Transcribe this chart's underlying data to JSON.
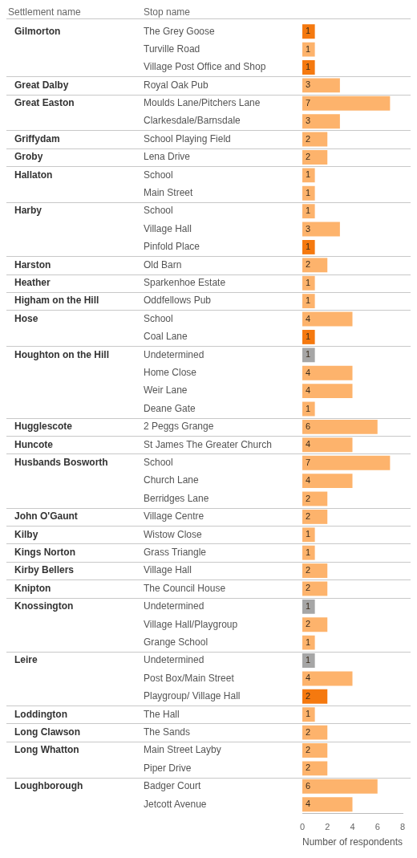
{
  "chart_data": {
    "type": "bar",
    "orientation": "horizontal",
    "xlabel": "Number of respondents",
    "categories": [
      "The Grey Goose",
      "Turville Road",
      "Village Post Office and Shop",
      "Royal Oak Pub",
      "Moulds Lane/Pitchers Lane",
      "Clarkesdale/Barnsdale",
      "School Playing Field",
      "Lena Drive",
      "School",
      "Main Street",
      "School",
      "Village Hall",
      "Pinfold Place",
      "Old Barn",
      "Sparkenhoe Estate",
      "Oddfellows Pub",
      "School",
      "Coal Lane",
      "Undetermined",
      "Home Close",
      "Weir Lane",
      "Deane Gate",
      "2 Peggs Grange",
      "St James The Greater Church",
      "School",
      "Church Lane",
      "Berridges Lane",
      "Village Centre",
      "Wistow Close",
      "Grass Triangle",
      "Village Hall",
      "The Council House",
      "Undetermined",
      "Village Hall/Playgroup",
      "Grange School",
      "Undetermined",
      "Post Box/Main Street",
      "Playgroup/ Village Hall",
      "The Hall",
      "The Sands",
      "Main Street Layby",
      "Piper Drive",
      "Badger Court",
      "Jetcott Avenue"
    ],
    "values": [
      1,
      1,
      1,
      3,
      7,
      3,
      2,
      2,
      1,
      1,
      1,
      3,
      1,
      2,
      1,
      1,
      4,
      1,
      1,
      4,
      4,
      1,
      6,
      4,
      7,
      4,
      2,
      2,
      1,
      1,
      2,
      2,
      1,
      2,
      1,
      1,
      4,
      2,
      1,
      2,
      2,
      2,
      6,
      4
    ],
    "colors": [
      "#f5790f",
      "#fdb36c",
      "#f5790f",
      "#fdb36c",
      "#fdb36c",
      "#fdb36c",
      "#fdb36c",
      "#fdb36c",
      "#fdb36c",
      "#fdb36c",
      "#fdb36c",
      "#fdb36c",
      "#f5790f",
      "#fdb36c",
      "#fdb36c",
      "#fdb36c",
      "#fdb36c",
      "#f5790f",
      "#a6a6a6",
      "#fdb36c",
      "#fdb36c",
      "#fdb36c",
      "#fdb36c",
      "#fdb36c",
      "#fdb36c",
      "#fdb36c",
      "#fdb36c",
      "#fdb36c",
      "#fdb36c",
      "#fdb36c",
      "#fdb36c",
      "#fdb36c",
      "#a6a6a6",
      "#fdb36c",
      "#fdb36c",
      "#a6a6a6",
      "#fdb36c",
      "#f5790f",
      "#fdb36c",
      "#fdb36c",
      "#fdb36c",
      "#fdb36c",
      "#fdb36c",
      "#fdb36c"
    ],
    "xlim": [
      0,
      8
    ],
    "xticks": [
      0,
      2,
      4,
      6,
      8
    ],
    "data_labels": true,
    "grid": false,
    "legend": false,
    "annotations": [
      "Settlement name",
      "Stop name"
    ],
    "y2_categories": [
      "Gilmorton",
      null,
      null,
      "Great Dalby",
      "Great Easton",
      null,
      "Griffydam",
      "Groby",
      "Hallaton",
      null,
      "Harby",
      null,
      null,
      "Harston",
      "Heather",
      "Higham on the Hill",
      "Hose",
      null,
      "Houghton on the Hill",
      null,
      null,
      null,
      "Hugglescote",
      "Huncote",
      "Husbands Bosworth",
      null,
      null,
      "John O'Gaunt",
      "Kilby",
      "Kings Norton",
      "Kirby Bellers",
      "Knipton",
      "Knossington",
      null,
      null,
      "Leire",
      null,
      null,
      "Loddington",
      "Long Clawson",
      "Long Whatton",
      null,
      "Loughborough",
      null
    ]
  }
}
